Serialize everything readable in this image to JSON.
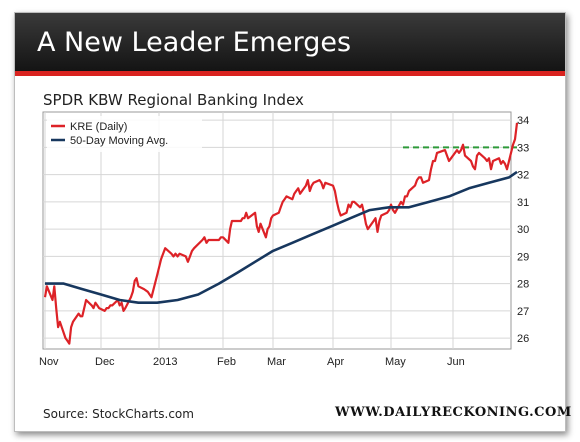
{
  "banner": {
    "title": "A New Leader Emerges"
  },
  "footer": {
    "source": "Source: StockCharts.com",
    "brand": "WWW.DAILYRECKONING.COM"
  },
  "colors": {
    "price": "#dd2227",
    "ma": "#17375e",
    "resistance": "#2e9a3a",
    "banner_accent": "#d9231f"
  },
  "chart_data": {
    "type": "line",
    "title": "SPDR KBW Regional Banking Index",
    "legend_position": "top-left",
    "x_tick_labels": [
      "Nov",
      "Dec",
      "2013",
      "Feb",
      "Mar",
      "Apr",
      "May",
      "Jun"
    ],
    "y_ticks": [
      26,
      27,
      28,
      29,
      30,
      31,
      32,
      33,
      34
    ],
    "ylim": [
      25.6,
      34.3
    ],
    "grid": true,
    "series": [
      {
        "name": "KRE (Daily)",
        "x": [
          "2012-11-01",
          "2012-11-02",
          "2012-11-05",
          "2012-11-06",
          "2012-11-07",
          "2012-11-08",
          "2012-11-09",
          "2012-11-12",
          "2012-11-13",
          "2012-11-14",
          "2012-11-15",
          "2012-11-16",
          "2012-11-19",
          "2012-11-20",
          "2012-11-21",
          "2012-11-23",
          "2012-11-26",
          "2012-11-27",
          "2012-11-28",
          "2012-11-29",
          "2012-11-30",
          "2012-12-03",
          "2012-12-04",
          "2012-12-05",
          "2012-12-06",
          "2012-12-07",
          "2012-12-10",
          "2012-12-11",
          "2012-12-12",
          "2012-12-13",
          "2012-12-14",
          "2012-12-17",
          "2012-12-18",
          "2012-12-19",
          "2012-12-20",
          "2012-12-21",
          "2012-12-24",
          "2012-12-26",
          "2012-12-27",
          "2012-12-28",
          "2012-12-31",
          "2013-01-02",
          "2013-01-03",
          "2013-01-04",
          "2013-01-07",
          "2013-01-08",
          "2013-01-09",
          "2013-01-10",
          "2013-01-11",
          "2013-01-14",
          "2013-01-15",
          "2013-01-16",
          "2013-01-17",
          "2013-01-18",
          "2013-01-22",
          "2013-01-23",
          "2013-01-24",
          "2013-01-25",
          "2013-01-28",
          "2013-01-29",
          "2013-01-30",
          "2013-01-31",
          "2013-02-01",
          "2013-02-04",
          "2013-02-05",
          "2013-02-06",
          "2013-02-07",
          "2013-02-08",
          "2013-02-11",
          "2013-02-12",
          "2013-02-13",
          "2013-02-14",
          "2013-02-15",
          "2013-02-19",
          "2013-02-20",
          "2013-02-21",
          "2013-02-22",
          "2013-02-25",
          "2013-02-26",
          "2013-02-27",
          "2013-02-28",
          "2013-03-01",
          "2013-03-04",
          "2013-03-05",
          "2013-03-06",
          "2013-03-07",
          "2013-03-08",
          "2013-03-11",
          "2013-03-12",
          "2013-03-13",
          "2013-03-14",
          "2013-03-15",
          "2013-03-18",
          "2013-03-19",
          "2013-03-20",
          "2013-03-21",
          "2013-03-22",
          "2013-03-25",
          "2013-03-26",
          "2013-03-27",
          "2013-03-28",
          "2013-04-01",
          "2013-04-02",
          "2013-04-03",
          "2013-04-04",
          "2013-04-05",
          "2013-04-08",
          "2013-04-09",
          "2013-04-10",
          "2013-04-11",
          "2013-04-12",
          "2013-04-15",
          "2013-04-16",
          "2013-04-17",
          "2013-04-18",
          "2013-04-19",
          "2013-04-22",
          "2013-04-23",
          "2013-04-24",
          "2013-04-25",
          "2013-04-26",
          "2013-04-29",
          "2013-04-30",
          "2013-05-01",
          "2013-05-02",
          "2013-05-03",
          "2013-05-06",
          "2013-05-07",
          "2013-05-08",
          "2013-05-09",
          "2013-05-10",
          "2013-05-13",
          "2013-05-14",
          "2013-05-15",
          "2013-05-16",
          "2013-05-17",
          "2013-05-20",
          "2013-05-21",
          "2013-05-22",
          "2013-05-23",
          "2013-05-24",
          "2013-05-28",
          "2013-05-29",
          "2013-05-30",
          "2013-05-31",
          "2013-06-03",
          "2013-06-04",
          "2013-06-05",
          "2013-06-06",
          "2013-06-07",
          "2013-06-10",
          "2013-06-11",
          "2013-06-12",
          "2013-06-13",
          "2013-06-14",
          "2013-06-17",
          "2013-06-18",
          "2013-06-19",
          "2013-06-20",
          "2013-06-21",
          "2013-06-24",
          "2013-06-25",
          "2013-06-26",
          "2013-06-27",
          "2013-06-28",
          "2013-07-01",
          "2013-07-02",
          "2013-07-03"
        ],
        "values": [
          27.5,
          27.9,
          27.4,
          27.9,
          27.1,
          26.4,
          26.6,
          26.0,
          25.9,
          25.8,
          26.4,
          26.6,
          26.9,
          26.8,
          26.8,
          27.4,
          27.2,
          27.1,
          27.3,
          27.2,
          27.1,
          27.0,
          27.1,
          27.1,
          27.2,
          27.2,
          27.4,
          27.2,
          27.3,
          27.0,
          27.1,
          27.5,
          27.7,
          28.1,
          28.2,
          27.9,
          27.8,
          27.7,
          27.6,
          27.5,
          28.3,
          28.9,
          29.1,
          29.3,
          29.1,
          29.0,
          29.1,
          29.0,
          29.1,
          29.0,
          28.8,
          29.0,
          29.2,
          29.3,
          29.6,
          29.7,
          29.5,
          29.6,
          29.6,
          29.6,
          29.6,
          29.7,
          29.7,
          29.5,
          30.0,
          30.3,
          30.3,
          30.3,
          30.3,
          30.4,
          30.4,
          30.6,
          30.4,
          30.6,
          30.1,
          29.9,
          30.2,
          29.7,
          30.0,
          30.1,
          30.4,
          30.5,
          30.6,
          30.8,
          31.0,
          31.1,
          31.2,
          31.1,
          31.3,
          31.4,
          31.5,
          31.3,
          31.6,
          31.8,
          31.4,
          31.6,
          31.7,
          31.8,
          31.7,
          31.5,
          31.7,
          31.6,
          31.4,
          31.0,
          30.7,
          30.5,
          30.6,
          30.9,
          30.8,
          31.0,
          31.0,
          30.8,
          30.9,
          30.6,
          30.2,
          30.0,
          30.3,
          30.4,
          29.9,
          30.3,
          30.5,
          30.6,
          30.7,
          30.9,
          30.7,
          30.6,
          31.0,
          30.9,
          31.2,
          31.2,
          31.4,
          31.6,
          31.8,
          31.9,
          31.9,
          31.7,
          31.8,
          32.2,
          32.5,
          32.5,
          32.8,
          32.9,
          32.7,
          32.5,
          32.6,
          32.9,
          32.8,
          32.9,
          33.1,
          32.7,
          32.5,
          32.3,
          32.2,
          32.7,
          32.8,
          32.6,
          32.5,
          32.6,
          32.2,
          32.5,
          32.6,
          32.4,
          32.5,
          32.4,
          32.2,
          33.1,
          33.3,
          33.9
        ],
        "color": "#dd2227"
      },
      {
        "name": "50-Day Moving Avg.",
        "x": [
          "2012-11-01",
          "2012-11-11",
          "2012-11-21",
          "2012-12-01",
          "2012-12-11",
          "2012-12-21",
          "2012-12-31",
          "2013-01-10",
          "2013-01-20",
          "2013-01-30",
          "2013-02-09",
          "2013-02-19",
          "2013-03-01",
          "2013-03-11",
          "2013-03-21",
          "2013-03-31",
          "2013-04-10",
          "2013-04-20",
          "2013-04-30",
          "2013-05-10",
          "2013-05-20",
          "2013-05-30",
          "2013-06-09",
          "2013-06-19",
          "2013-06-29",
          "2013-07-03"
        ],
        "values": [
          28.0,
          28.0,
          27.8,
          27.6,
          27.4,
          27.3,
          27.3,
          27.4,
          27.6,
          28.0,
          28.4,
          28.8,
          29.2,
          29.5,
          29.8,
          30.1,
          30.4,
          30.7,
          30.8,
          30.8,
          31.0,
          31.2,
          31.5,
          31.7,
          31.9,
          32.1
        ],
        "color": "#17375e"
      }
    ],
    "annotations": [
      {
        "type": "horizontal-dashed-line",
        "y": 33.0,
        "x_start": "2013-05-07",
        "x_end": "2013-07-03",
        "color": "#2e9a3a"
      }
    ]
  }
}
